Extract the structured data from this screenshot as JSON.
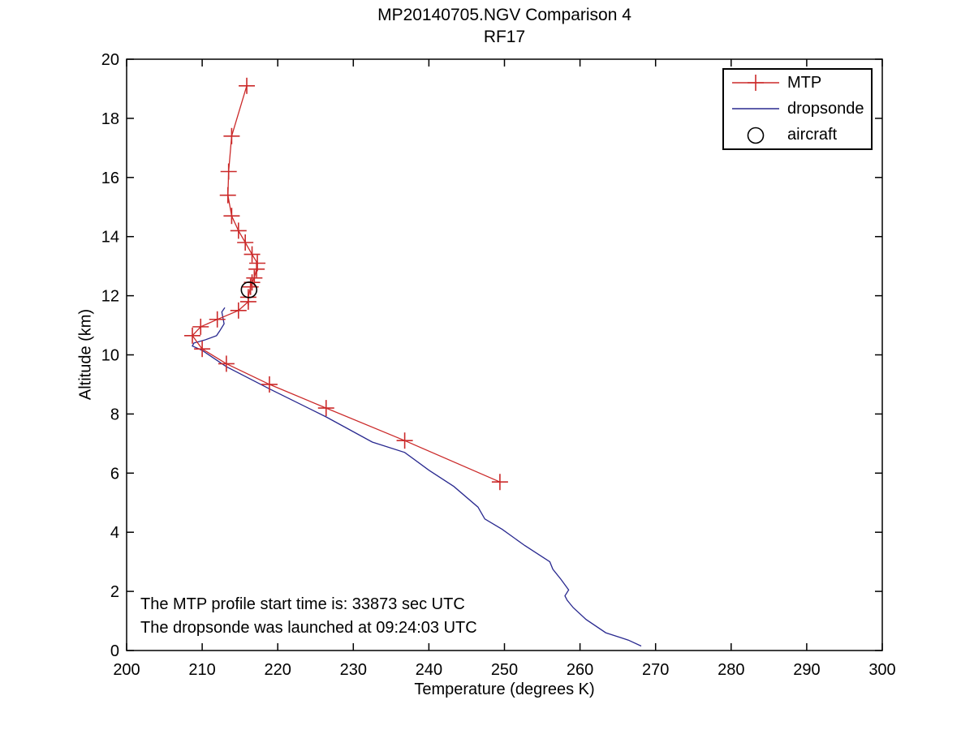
{
  "chart_data": {
    "type": "line",
    "title": "MP20140705.NGV Comparison 4",
    "subtitle": "RF17",
    "xlabel": "Temperature (degrees K)",
    "ylabel": "Altitude (km)",
    "xlim": [
      200,
      300
    ],
    "ylim": [
      0,
      20
    ],
    "x_ticks": [
      200,
      210,
      220,
      230,
      240,
      250,
      260,
      270,
      280,
      290,
      300
    ],
    "y_ticks": [
      0,
      2,
      4,
      6,
      8,
      10,
      12,
      14,
      16,
      18,
      20
    ],
    "grid": false,
    "legend_position": "top-right-inside",
    "annotations": [
      "The MTP profile start time is: 33873 sec UTC",
      "The dropsonde was launched at 09:24:03 UTC"
    ],
    "legend": [
      {
        "label": "MTP",
        "marker": "plus-line",
        "series_index": 0
      },
      {
        "label": "dropsonde",
        "marker": "line",
        "series_index": 1
      },
      {
        "label": "aircraft",
        "marker": "circle",
        "series_index": 2
      }
    ],
    "series": [
      {
        "name": "MTP",
        "color": "#cb2a2a",
        "marker": "plus",
        "line": true,
        "points_format": [
          "temperature_K",
          "altitude_km"
        ],
        "points": [
          [
            215.9,
            19.1
          ],
          [
            213.9,
            17.4
          ],
          [
            213.5,
            16.2
          ],
          [
            213.4,
            15.4
          ],
          [
            213.9,
            14.7
          ],
          [
            214.8,
            14.2
          ],
          [
            215.7,
            13.8
          ],
          [
            216.6,
            13.4
          ],
          [
            217.3,
            13.1
          ],
          [
            217.2,
            12.9
          ],
          [
            216.9,
            12.6
          ],
          [
            216.6,
            12.45
          ],
          [
            216.4,
            12.3
          ],
          [
            216.1,
            11.95
          ],
          [
            216.1,
            11.8
          ],
          [
            214.8,
            11.5
          ],
          [
            212.0,
            11.2
          ],
          [
            209.8,
            10.95
          ],
          [
            208.7,
            10.65
          ],
          [
            210.0,
            10.2
          ],
          [
            213.2,
            9.7
          ],
          [
            218.9,
            9.0
          ],
          [
            226.4,
            8.2
          ],
          [
            236.8,
            7.1
          ],
          [
            249.4,
            5.7
          ]
        ]
      },
      {
        "name": "dropsonde",
        "color": "#28288f",
        "marker": "none",
        "line": true,
        "points_format": [
          "temperature_K",
          "altitude_km"
        ],
        "points": [
          [
            213.0,
            11.6
          ],
          [
            212.6,
            11.45
          ],
          [
            212.9,
            11.05
          ],
          [
            212.3,
            10.8
          ],
          [
            211.9,
            10.65
          ],
          [
            210.3,
            10.5
          ],
          [
            208.9,
            10.4
          ],
          [
            208.7,
            10.3
          ],
          [
            210.0,
            10.15
          ],
          [
            213.2,
            9.6
          ],
          [
            218.9,
            8.85
          ],
          [
            226.4,
            7.9
          ],
          [
            232.5,
            7.05
          ],
          [
            236.8,
            6.7
          ],
          [
            240.0,
            6.1
          ],
          [
            243.3,
            5.55
          ],
          [
            246.5,
            4.85
          ],
          [
            247.4,
            4.45
          ],
          [
            249.7,
            4.1
          ],
          [
            252.7,
            3.55
          ],
          [
            256.0,
            3.0
          ],
          [
            256.4,
            2.75
          ],
          [
            257.5,
            2.4
          ],
          [
            258.5,
            2.05
          ],
          [
            258.0,
            1.85
          ],
          [
            258.3,
            1.7
          ],
          [
            259.1,
            1.45
          ],
          [
            260.8,
            1.05
          ],
          [
            263.4,
            0.6
          ],
          [
            266.4,
            0.35
          ],
          [
            268.1,
            0.15
          ]
        ]
      },
      {
        "name": "aircraft",
        "color": "#000000",
        "marker": "circle",
        "line": false,
        "points_format": [
          "temperature_K",
          "altitude_km"
        ],
        "points": [
          [
            216.2,
            12.2
          ]
        ]
      }
    ]
  }
}
